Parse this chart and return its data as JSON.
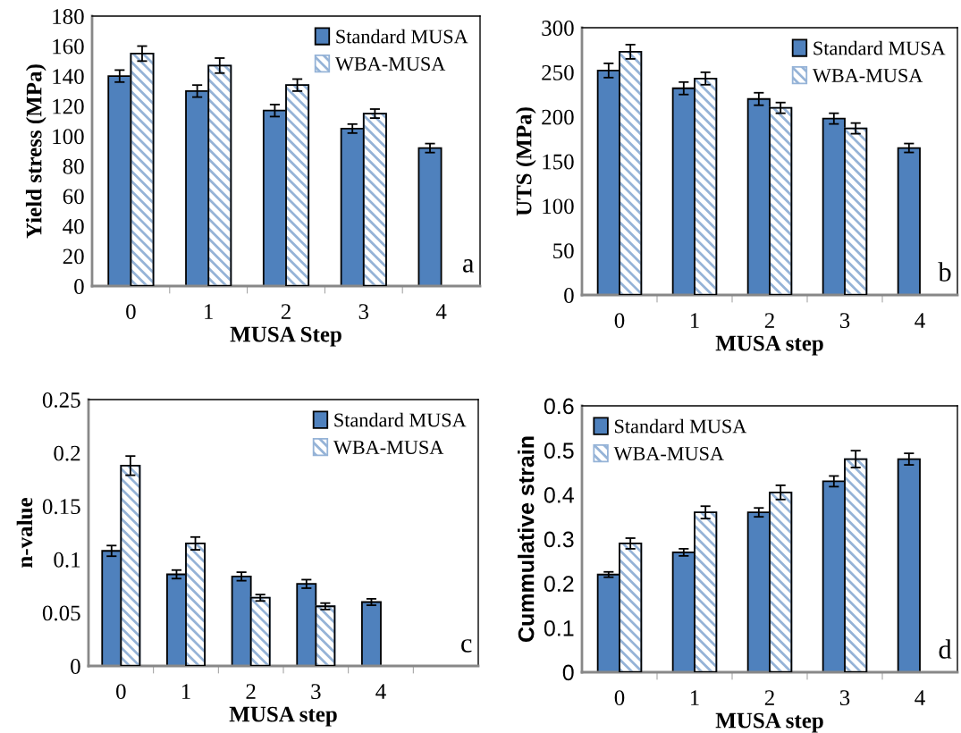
{
  "chart_data": [
    {
      "type": "bar",
      "xlabel": "MUSA Step",
      "ylabel": "Yield stress (MPa)",
      "categories": [
        "0",
        "1",
        "2",
        "3",
        "4"
      ],
      "ylim": [
        0,
        180
      ],
      "yticks": [
        0,
        20,
        40,
        60,
        80,
        100,
        120,
        140,
        160,
        180
      ],
      "legend": "top right",
      "grid": false,
      "annotations": [
        "a"
      ],
      "series": [
        {
          "name": "Standard MUSA",
          "color": "#4f81bd",
          "values": [
            140,
            130,
            117,
            105,
            92
          ],
          "errors": [
            4,
            4,
            4,
            3,
            3
          ]
        },
        {
          "name": "WBA-MUSA",
          "color": "#95b3d7",
          "values": [
            155,
            147,
            134,
            115,
            null
          ],
          "errors": [
            5,
            5,
            4,
            3,
            null
          ]
        }
      ]
    },
    {
      "type": "bar",
      "xlabel": "MUSA step",
      "ylabel": "UTS (MPa)",
      "categories": [
        "0",
        "1",
        "2",
        "3",
        "4"
      ],
      "ylim": [
        0,
        300
      ],
      "yticks": [
        0,
        50,
        100,
        150,
        200,
        250,
        300
      ],
      "legend": "top right",
      "grid": false,
      "annotations": [
        "b"
      ],
      "series": [
        {
          "name": "Standard MUSA",
          "color": "#4f81bd",
          "values": [
            252,
            232,
            220,
            198,
            165
          ],
          "errors": [
            8,
            7,
            7,
            6,
            5
          ]
        },
        {
          "name": "WBA-MUSA",
          "color": "#95b3d7",
          "values": [
            273,
            243,
            210,
            187,
            null
          ],
          "errors": [
            8,
            7,
            6,
            6,
            null
          ]
        }
      ]
    },
    {
      "type": "bar",
      "xlabel": "MUSA step",
      "ylabel": "n-value",
      "categories": [
        "0",
        "1",
        "2",
        "3",
        "4",
        null
      ],
      "ylim": [
        0,
        0.25
      ],
      "yticks": [
        0,
        0.05,
        0.1,
        0.15,
        0.2,
        0.25
      ],
      "legend": "top right",
      "grid": false,
      "annotations": [
        "c"
      ],
      "series": [
        {
          "name": "Standard MUSA",
          "color": "#4f81bd",
          "values": [
            0.108,
            0.086,
            0.084,
            0.077,
            0.06,
            null
          ],
          "errors": [
            0.005,
            0.004,
            0.004,
            0.004,
            0.003,
            null
          ]
        },
        {
          "name": "WBA-MUSA",
          "color": "#95b3d7",
          "values": [
            0.188,
            0.115,
            0.064,
            0.056,
            null,
            null
          ],
          "errors": [
            0.009,
            0.006,
            0.003,
            0.003,
            null,
            null
          ]
        }
      ]
    },
    {
      "type": "bar",
      "xlabel": "MUSA step",
      "ylabel": "Cummulative strain",
      "categories": [
        "0",
        "1",
        "2",
        "3",
        "4"
      ],
      "ylim": [
        0,
        0.6
      ],
      "yticks": [
        0,
        0.1,
        0.2,
        0.3,
        0.4,
        0.5,
        0.6
      ],
      "legend": "top left",
      "grid": false,
      "annotations": [
        "d"
      ],
      "series": [
        {
          "name": "Standard MUSA",
          "color": "#4f81bd",
          "values": [
            0.22,
            0.27,
            0.36,
            0.43,
            0.48
          ],
          "errors": [
            0.006,
            0.008,
            0.01,
            0.012,
            0.013
          ]
        },
        {
          "name": "WBA-MUSA",
          "color": "#95b3d7",
          "values": [
            0.29,
            0.36,
            0.405,
            0.48,
            null
          ],
          "errors": [
            0.012,
            0.014,
            0.016,
            0.019,
            null
          ]
        }
      ]
    }
  ]
}
